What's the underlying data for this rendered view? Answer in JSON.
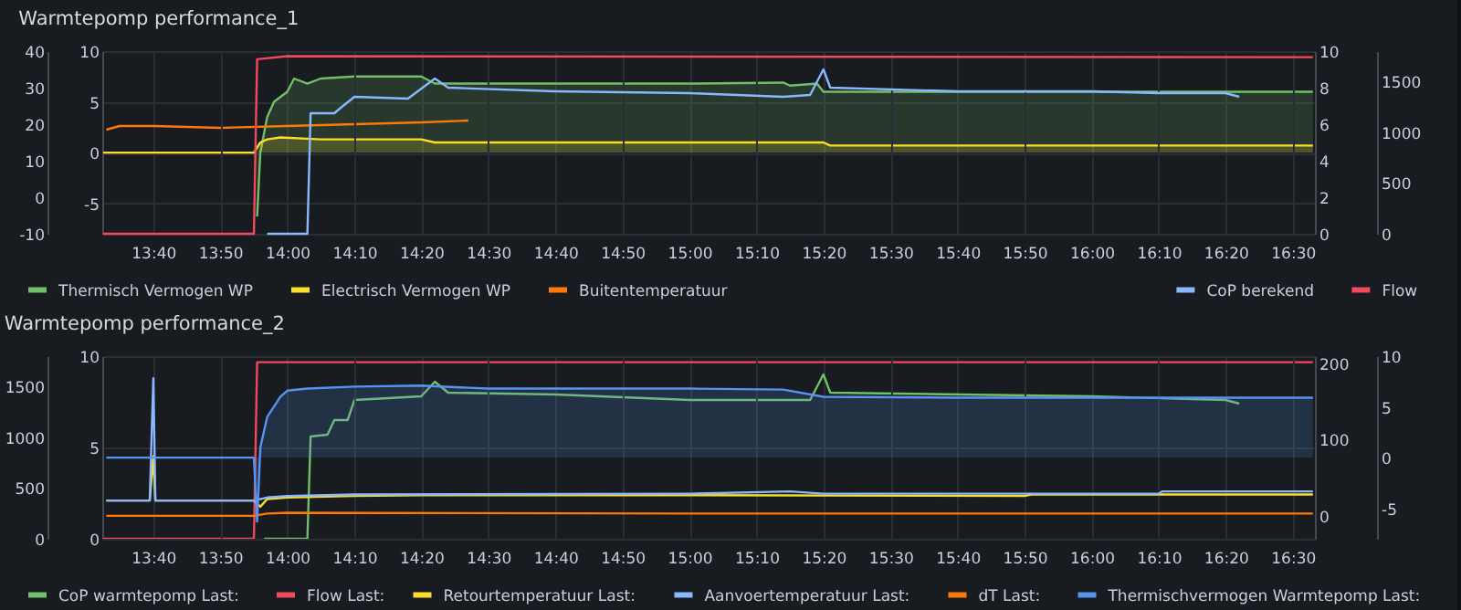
{
  "chart_data": [
    {
      "type": "line",
      "title": "Warmtepomp performance_1",
      "xlim": [
        13.54,
        16.555
      ],
      "xticks": [
        {
          "value": 13.6667,
          "label": "13:40"
        },
        {
          "value": 14,
          "label": "14:00"
        },
        {
          "value": 14.3333,
          "label": "14:20"
        },
        {
          "value": 14.6667,
          "label": "14:40"
        },
        {
          "value": 15,
          "label": "15:00"
        },
        {
          "value": 15.3333,
          "label": "15:20"
        },
        {
          "value": 15.6667,
          "label": "15:40"
        },
        {
          "value": 16,
          "label": "16:00"
        },
        {
          "value": 16.3333,
          "label": "16:20"
        }
      ],
      "ylim": [
        -8,
        10
      ],
      "yticks": [
        -5,
        0,
        5,
        10
      ],
      "y2lim": [
        -10,
        40
      ],
      "y2ticks": [
        -10,
        0,
        10,
        20,
        30,
        40
      ],
      "grid": true,
      "legend": "bottom left",
      "series": [
        {
          "name": "Thermisch Vermogen WP",
          "type": "area",
          "color": "#73bf69",
          "x": [
            13.925,
            13.933,
            13.95,
            13.967,
            14.0,
            14.017,
            14.05,
            14.083,
            14.167,
            14.333,
            14.367,
            14.5,
            14.833,
            15.0,
            15.233,
            15.25,
            15.317,
            15.333,
            15.667,
            16.0,
            16.55
          ],
          "values": [
            -6.3,
            0,
            3.5,
            5.0,
            6.0,
            7.3,
            6.8,
            7.3,
            7.5,
            7.5,
            6.8,
            6.8,
            6.8,
            6.8,
            6.9,
            6.6,
            6.8,
            6.0,
            6.0,
            6.0,
            6.0
          ]
        },
        {
          "name": "Electrisch Vermogen WP",
          "type": "area",
          "color": "#fade2a",
          "x": [
            13.542,
            13.917,
            13.933,
            13.95,
            13.983,
            14.083,
            14.333,
            14.367,
            15.333,
            15.35,
            16.55
          ],
          "values": [
            0,
            0,
            1.0,
            1.3,
            1.5,
            1.3,
            1.3,
            1.0,
            1.0,
            0.7,
            0.7
          ]
        },
        {
          "name": "Buitentemperatuur",
          "color": "#ff780a",
          "axis": "y2",
          "x": [
            13.55,
            13.583,
            13.667,
            13.833,
            14.0,
            14.167,
            14.333,
            14.45
          ],
          "values": [
            18.5,
            19.5,
            19.5,
            19,
            19.5,
            20,
            20.5,
            21
          ]
        }
      ]
    },
    {
      "type": "line",
      "xlim": [
        13.54,
        16.555
      ],
      "xticks": [
        {
          "value": 13.8333,
          "label": "13:50"
        },
        {
          "value": 14.1667,
          "label": "14:10"
        },
        {
          "value": 14.5,
          "label": "14:30"
        },
        {
          "value": 14.8333,
          "label": "14:50"
        },
        {
          "value": 15.1667,
          "label": "15:10"
        },
        {
          "value": 15.5,
          "label": "15:30"
        },
        {
          "value": 15.8333,
          "label": "15:50"
        },
        {
          "value": 16.1667,
          "label": "16:10"
        },
        {
          "value": 16.5,
          "label": "16:30"
        }
      ],
      "ylim": [
        0,
        10
      ],
      "yticks": [
        0,
        2,
        4,
        6,
        8,
        10
      ],
      "y2lim": [
        0,
        1800
      ],
      "y2ticks": [
        0,
        500,
        1000,
        1500
      ],
      "grid": "x",
      "legend": "bottom right",
      "series": [
        {
          "name": "CoP berekend",
          "color": "#8ab8ff",
          "x": [
            13.95,
            14.05,
            14.058,
            14.117,
            14.133,
            14.167,
            14.3,
            14.367,
            14.4,
            14.667,
            15.0,
            15.233,
            15.3,
            15.333,
            15.35,
            15.667,
            16.0,
            16.167,
            16.333,
            16.367
          ],
          "values": [
            0,
            0,
            6.6,
            6.6,
            6.9,
            7.5,
            7.4,
            8.5,
            8.0,
            7.8,
            7.7,
            7.5,
            7.6,
            9.0,
            8.0,
            7.8,
            7.8,
            7.7,
            7.7,
            7.5
          ]
        },
        {
          "name": "Flow",
          "color": "#f2495c",
          "axis": "y2",
          "x": [
            13.542,
            13.917,
            13.925,
            14.0,
            16.55
          ],
          "values": [
            0,
            0,
            1720,
            1750,
            1740
          ]
        }
      ]
    },
    {
      "type": "line",
      "title": "Warmtepomp performance_2",
      "xlim": [
        13.54,
        16.555
      ],
      "xticks": [
        {
          "value": 13.6667,
          "label": "13:40"
        },
        {
          "value": 14,
          "label": "14:00"
        },
        {
          "value": 14.3333,
          "label": "14:20"
        },
        {
          "value": 14.6667,
          "label": "14:40"
        },
        {
          "value": 15,
          "label": "15:00"
        },
        {
          "value": 15.3333,
          "label": "15:20"
        },
        {
          "value": 15.6667,
          "label": "15:40"
        },
        {
          "value": 16,
          "label": "16:00"
        },
        {
          "value": 16.3333,
          "label": "16:20"
        }
      ],
      "ylim": [
        0,
        10
      ],
      "yticks": [
        0,
        5,
        10
      ],
      "y2lim": [
        0,
        1800
      ],
      "y2ticks": [
        0,
        500,
        1000,
        1500
      ],
      "grid": true,
      "legend": "bottom left",
      "series": [
        {
          "name": "CoP warmtepomp Last:",
          "color": "#73bf69",
          "x": [
            13.942,
            14.05,
            14.058,
            14.1,
            14.117,
            14.15,
            14.167,
            14.333,
            14.367,
            14.4,
            14.667,
            15.0,
            15.3,
            15.333,
            15.35,
            16.0,
            16.333,
            16.367
          ],
          "values": [
            0,
            0,
            5.6,
            5.7,
            6.5,
            6.5,
            7.6,
            7.8,
            8.6,
            8.0,
            7.9,
            7.6,
            7.6,
            9.0,
            8.0,
            7.8,
            7.6,
            7.4
          ]
        },
        {
          "name": "Flow Last:",
          "color": "#f2495c",
          "axis": "y2",
          "x": [
            13.542,
            13.917,
            13.925,
            16.55
          ],
          "values": [
            0,
            0,
            1740,
            1740
          ]
        }
      ]
    },
    {
      "type": "line",
      "xlim": [
        13.54,
        16.555
      ],
      "xticks": [
        {
          "value": 13.8333,
          "label": "13:50"
        },
        {
          "value": 14.1667,
          "label": "14:10"
        },
        {
          "value": 14.5,
          "label": "14:30"
        },
        {
          "value": 14.8333,
          "label": "14:50"
        },
        {
          "value": 15.1667,
          "label": "15:10"
        },
        {
          "value": 15.5,
          "label": "15:30"
        },
        {
          "value": 15.8333,
          "label": "15:50"
        },
        {
          "value": 16.1667,
          "label": "16:10"
        },
        {
          "value": 16.5,
          "label": "16:30"
        }
      ],
      "ylim": [
        -30,
        209
      ],
      "yticks": [
        0,
        100,
        200
      ],
      "y2lim": [
        -8,
        10
      ],
      "y2ticks": [
        -5,
        0,
        5,
        10
      ],
      "grid": "x",
      "legend": "bottom right",
      "series": [
        {
          "name": "Retourtemperatuur Last:",
          "color": "#fade2a",
          "x": [
            13.55,
            13.658,
            13.667,
            13.672,
            13.917,
            13.933,
            13.95,
            14.0,
            14.167,
            14.333,
            15.0,
            15.833,
            15.85,
            16.55
          ],
          "values": [
            20,
            20,
            78,
            20,
            20,
            12,
            22,
            24,
            26,
            27,
            27,
            26,
            28,
            28
          ]
        },
        {
          "name": "Aanvoertemperatuur Last:",
          "color": "#8ab8ff",
          "x": [
            13.55,
            13.658,
            13.667,
            13.672,
            13.917,
            13.95,
            14.0,
            14.167,
            15.0,
            15.25,
            15.333,
            16.167,
            16.175,
            16.55
          ],
          "values": [
            20,
            20,
            180,
            20,
            20,
            24,
            26,
            28,
            29,
            32,
            29,
            29,
            32,
            32
          ]
        },
        {
          "name": "dT Last:",
          "color": "#ff780a",
          "x": [
            13.55,
            13.917,
            13.95,
            14.0,
            15.0,
            16.55
          ],
          "values": [
            0,
            0,
            3,
            4,
            3,
            3
          ]
        },
        {
          "name": "Thermischvermogen Warmtepomp Last:",
          "type": "area",
          "color": "#5794f2",
          "axis": "y2",
          "x": [
            13.55,
            13.917,
            13.925,
            13.933,
            13.95,
            13.983,
            14.0,
            14.05,
            14.167,
            14.333,
            14.5,
            15.0,
            15.233,
            15.333,
            15.667,
            16.55
          ],
          "values": [
            0,
            0,
            -6.3,
            1,
            4,
            6.0,
            6.6,
            6.8,
            7.0,
            7.1,
            6.8,
            6.8,
            6.7,
            6.0,
            5.9,
            5.9
          ]
        }
      ]
    }
  ]
}
